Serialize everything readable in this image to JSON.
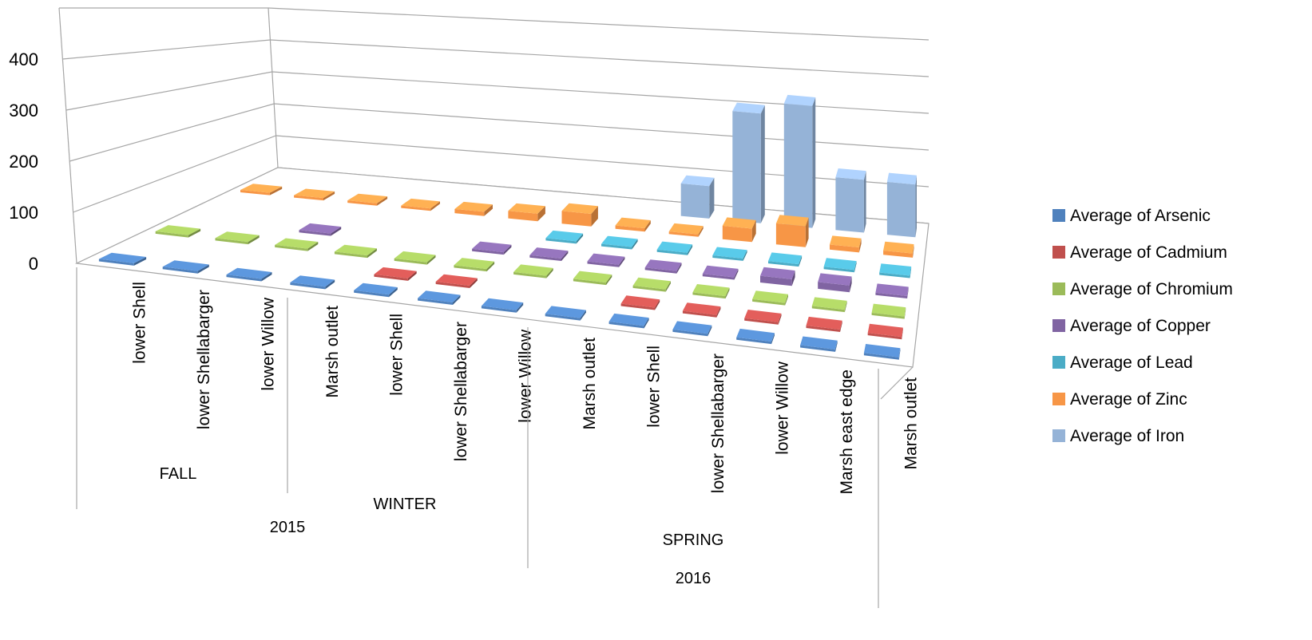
{
  "chart_data": {
    "type": "bar",
    "subtype": "3d-column",
    "title": "",
    "xlabel": "",
    "ylabel": "",
    "ylim": [
      0,
      400
    ],
    "yticks": [
      0,
      100,
      200,
      300,
      400
    ],
    "grid": true,
    "legend_position": "right",
    "categories": [
      {
        "year": "2015",
        "season": "FALL",
        "site": "lower Shell"
      },
      {
        "year": "2015",
        "season": "FALL",
        "site": "lower Shellabarger"
      },
      {
        "year": "2015",
        "season": "FALL",
        "site": "lower Willow"
      },
      {
        "year": "2015",
        "season": "FALL",
        "site": "Marsh outlet"
      },
      {
        "year": "2015",
        "season": "WINTER",
        "site": "lower Shell"
      },
      {
        "year": "2015",
        "season": "WINTER",
        "site": "lower Shellabarger"
      },
      {
        "year": "2015",
        "season": "WINTER",
        "site": "lower Willow"
      },
      {
        "year": "2015",
        "season": "WINTER",
        "site": "Marsh outlet"
      },
      {
        "year": "2016",
        "season": "SPRING",
        "site": "lower Shell"
      },
      {
        "year": "2016",
        "season": "SPRING",
        "site": "lower Shellabarger"
      },
      {
        "year": "2016",
        "season": "SPRING",
        "site": "lower Willow"
      },
      {
        "year": "2016",
        "season": "SPRING",
        "site": "Marsh  east edge"
      },
      {
        "year": "2016",
        "season": "SPRING",
        "site": "Marsh outlet"
      }
    ],
    "season_groups": [
      {
        "label": "FALL",
        "start": 0,
        "end": 3
      },
      {
        "label": "WINTER",
        "start": 4,
        "end": 7
      },
      {
        "label": "SPRING",
        "start": 8,
        "end": 12
      }
    ],
    "year_groups": [
      {
        "label": "2015",
        "start": 0,
        "end": 7
      },
      {
        "label": "2016",
        "start": 8,
        "end": 12
      }
    ],
    "series": [
      {
        "name": "Average of Arsenic",
        "color": "#4F81BD",
        "values": [
          1,
          1,
          1,
          1,
          1,
          1,
          1,
          1,
          1,
          1,
          1,
          1,
          1
        ]
      },
      {
        "name": "Average of Cadmium",
        "color": "#C0504D",
        "values": [
          null,
          null,
          null,
          null,
          0.5,
          0.5,
          null,
          null,
          0.5,
          0.5,
          0.5,
          0.5,
          0.5
        ]
      },
      {
        "name": "Average of Chromium",
        "color": "#9BBB59",
        "values": [
          1,
          1,
          1,
          1,
          1,
          1,
          1,
          1,
          1,
          1,
          1,
          1,
          1
        ]
      },
      {
        "name": "Average of Copper",
        "color": "#8064A2",
        "values": [
          null,
          null,
          2,
          null,
          null,
          2,
          2,
          2,
          2,
          2,
          15,
          15,
          2
        ]
      },
      {
        "name": "Average of Lead",
        "color": "#4BACC6",
        "values": [
          null,
          null,
          null,
          null,
          null,
          null,
          1,
          1,
          1,
          1,
          1,
          1,
          1
        ]
      },
      {
        "name": "Average of Zinc",
        "color": "#F79646",
        "values": [
          3,
          4,
          4,
          5,
          10,
          18,
          30,
          8,
          6,
          32,
          50,
          12,
          10
        ]
      },
      {
        "name": "Average of Iron",
        "color": "#95B3D7",
        "values": [
          null,
          null,
          null,
          null,
          null,
          null,
          null,
          null,
          80,
          270,
          300,
          130,
          130
        ]
      }
    ]
  }
}
